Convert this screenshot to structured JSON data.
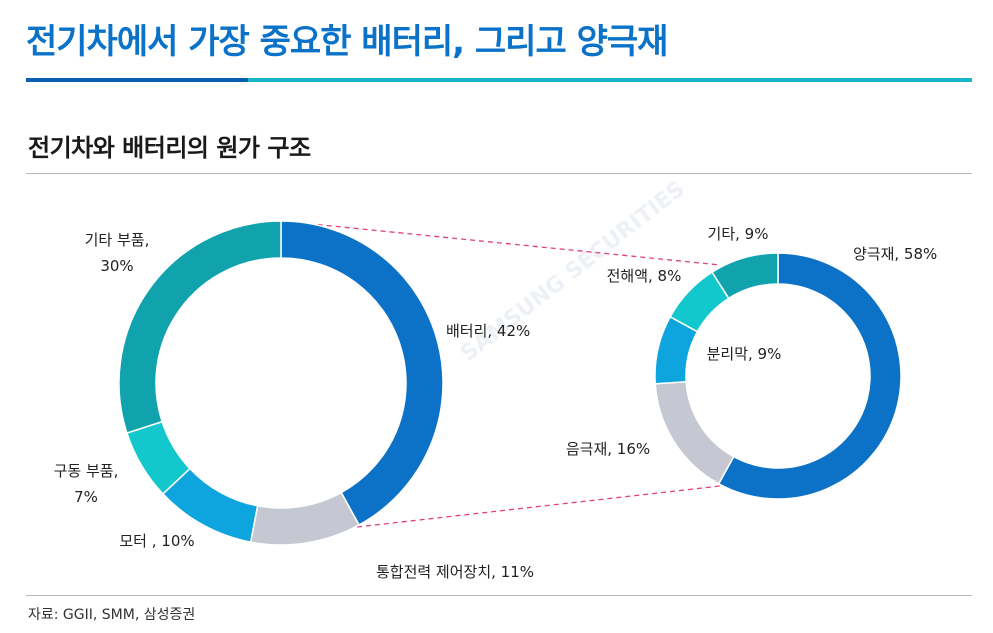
{
  "page": {
    "title": "전기차에서 가장 중요한 배터리, 그리고 양극재",
    "subtitle": "전기차와 배터리의 원가 구조",
    "source": "자료: GGII, SMM, 삼성증권",
    "watermark": "SAMSUNG SECURITIES"
  },
  "colors": {
    "title": "#0a72c8",
    "rule_blue": "#0a5fb5",
    "rule_teal": "#17b6c9",
    "connector": "#e2417d"
  },
  "chart_data": [
    {
      "type": "donut",
      "slices": [
        {
          "label": "배터리, 42%",
          "category": "배터리",
          "value": 42,
          "color": "#0b72c8"
        },
        {
          "label": "통합전력 제어장치, 11%",
          "category": "통합전력 제어장치",
          "value": 11,
          "color": "#c5c8d2"
        },
        {
          "label": "모터 , 10%",
          "category": "모터",
          "value": 10,
          "color": "#0ea5df"
        },
        {
          "label_lines": [
            "구동 부품,",
            "7%"
          ],
          "category": "구동 부품",
          "value": 7,
          "color": "#12c8cc"
        },
        {
          "label_lines": [
            "기타 부품,",
            "30%"
          ],
          "category": "기타 부품",
          "value": 30,
          "color": "#10a2ad"
        }
      ]
    },
    {
      "type": "donut",
      "slices": [
        {
          "label": "양극재, 58%",
          "category": "양극재",
          "value": 58,
          "color": "#0b72c8"
        },
        {
          "label": "음극재, 16%",
          "category": "음극재",
          "value": 16,
          "color": "#c5c8d2"
        },
        {
          "label": "분리막, 9%",
          "category": "분리막",
          "value": 9,
          "color": "#0ea5df"
        },
        {
          "label": "전해액, 8%",
          "category": "전해액",
          "value": 8,
          "color": "#12c8cc"
        },
        {
          "label": "기타, 9%",
          "category": "기타",
          "value": 9,
          "color": "#10a2ad"
        }
      ]
    }
  ]
}
